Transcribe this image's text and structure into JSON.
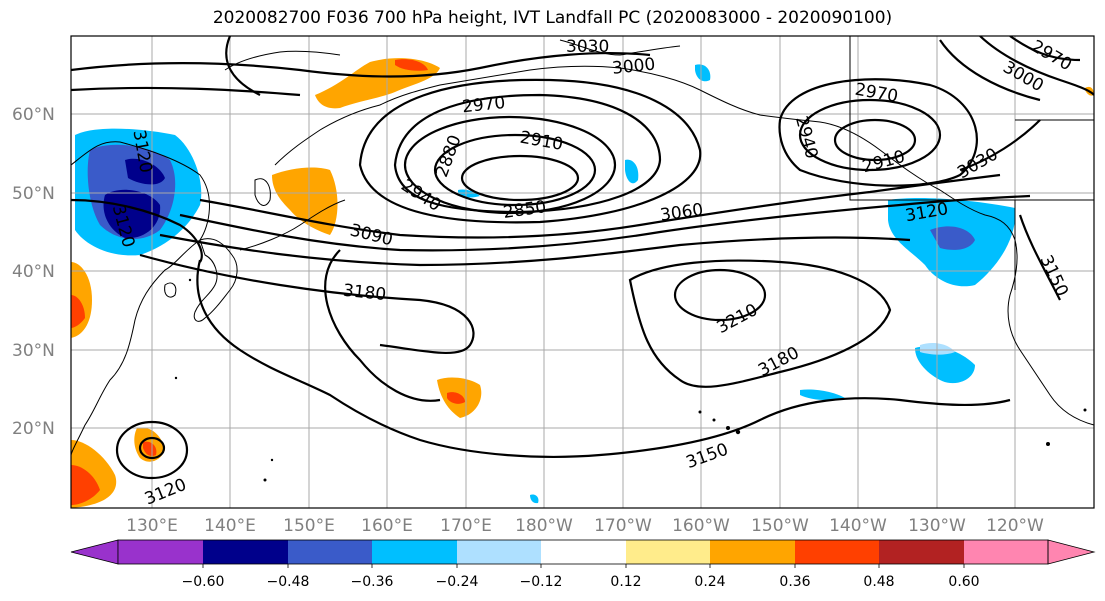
{
  "title": "2020082700 F036 700 hPa height, IVT Landfall PC (2020083000 - 2020090100)",
  "map": {
    "lat_labels": [
      "60°N",
      "50°N",
      "40°N",
      "30°N",
      "20°N"
    ],
    "lon_labels": [
      "130°E",
      "140°E",
      "150°E",
      "160°E",
      "170°E",
      "180°W",
      "170°W",
      "160°W",
      "150°W",
      "140°W",
      "130°W",
      "120°W"
    ],
    "contour_labels": [
      "3030",
      "3000",
      "2970",
      "2910",
      "2880",
      "2850",
      "2940",
      "3090",
      "3060",
      "3180",
      "3210",
      "3180",
      "3150",
      "3120",
      "3120",
      "3120",
      "2970",
      "2940",
      "2910",
      "3030",
      "3120",
      "3150",
      "2970",
      "3000"
    ]
  },
  "colorbar": {
    "ticks": [
      "−0.60",
      "−0.48",
      "−0.36",
      "−0.24",
      "−0.12",
      "0.12",
      "0.24",
      "0.36",
      "0.48",
      "0.60"
    ],
    "colors": [
      "#9932CC",
      "#00008B",
      "#3A5BC9",
      "#00BFFF",
      "#AEE0FF",
      "#FFFFFF",
      "#FFEC8B",
      "#FFA500",
      "#FF4000",
      "#B22222",
      "#FF85B0"
    ]
  }
}
